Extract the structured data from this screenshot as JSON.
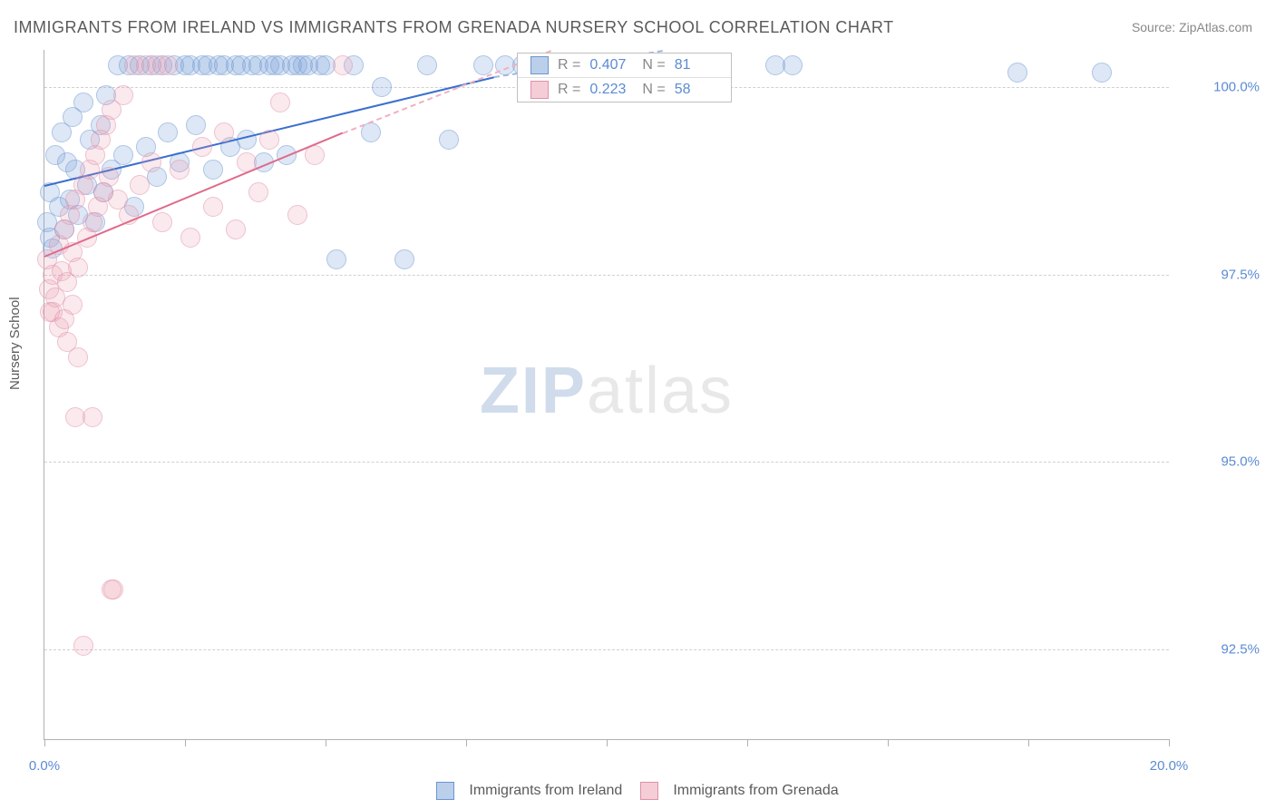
{
  "title": "IMMIGRANTS FROM IRELAND VS IMMIGRANTS FROM GRENADA NURSERY SCHOOL CORRELATION CHART",
  "source": "Source: ZipAtlas.com",
  "y_axis_label": "Nursery School",
  "watermark": {
    "part1": "ZIP",
    "part2": "atlas"
  },
  "chart": {
    "type": "scatter",
    "background_color": "#ffffff",
    "grid_color": "#d0d0d0",
    "axis_color": "#b0b0b0",
    "tick_label_color": "#5b8bd4",
    "xlim": [
      0.0,
      20.0
    ],
    "ylim": [
      91.3,
      100.5
    ],
    "ytick_values": [
      92.5,
      95.0,
      97.5,
      100.0
    ],
    "ytick_labels": [
      "92.5%",
      "95.0%",
      "97.5%",
      "100.0%"
    ],
    "xtick_values": [
      0.0,
      2.5,
      5.0,
      7.5,
      10.0,
      12.5,
      15.0,
      17.5,
      20.0
    ],
    "xlim_labels": {
      "min": "0.0%",
      "max": "20.0%"
    },
    "marker_radius": 10,
    "series": [
      {
        "name": "Immigrants from Ireland",
        "color_fill": "rgba(120,160,215,0.45)",
        "color_stroke": "#6a95d0",
        "line_color": "#3a6fcf",
        "css": "blue",
        "R": "0.407",
        "N": "81",
        "trend": {
          "x1": 0.0,
          "y1": 98.7,
          "x2": 8.0,
          "y2": 100.15
        },
        "trend_ext": {
          "x1": 8.0,
          "y1": 100.15,
          "x2": 11.0,
          "y2": 100.5
        },
        "points": [
          [
            0.05,
            98.2
          ],
          [
            0.1,
            98.0
          ],
          [
            0.15,
            97.85
          ],
          [
            0.1,
            98.6
          ],
          [
            0.2,
            99.1
          ],
          [
            0.25,
            98.4
          ],
          [
            0.3,
            99.4
          ],
          [
            0.35,
            98.1
          ],
          [
            0.4,
            99.0
          ],
          [
            0.45,
            98.5
          ],
          [
            0.5,
            99.6
          ],
          [
            0.55,
            98.9
          ],
          [
            0.6,
            98.3
          ],
          [
            0.7,
            99.8
          ],
          [
            0.75,
            98.7
          ],
          [
            0.8,
            99.3
          ],
          [
            0.9,
            98.2
          ],
          [
            1.0,
            99.5
          ],
          [
            1.05,
            98.6
          ],
          [
            1.1,
            99.9
          ],
          [
            1.2,
            98.9
          ],
          [
            1.3,
            100.3
          ],
          [
            1.4,
            99.1
          ],
          [
            1.5,
            100.3
          ],
          [
            1.6,
            98.4
          ],
          [
            1.7,
            100.3
          ],
          [
            1.8,
            99.2
          ],
          [
            1.9,
            100.3
          ],
          [
            2.0,
            98.8
          ],
          [
            2.1,
            100.3
          ],
          [
            2.2,
            99.4
          ],
          [
            2.3,
            100.3
          ],
          [
            2.4,
            99.0
          ],
          [
            2.5,
            100.3
          ],
          [
            2.6,
            100.3
          ],
          [
            2.7,
            99.5
          ],
          [
            2.8,
            100.3
          ],
          [
            2.9,
            100.3
          ],
          [
            3.0,
            98.9
          ],
          [
            3.1,
            100.3
          ],
          [
            3.2,
            100.3
          ],
          [
            3.3,
            99.2
          ],
          [
            3.4,
            100.3
          ],
          [
            3.5,
            100.3
          ],
          [
            3.6,
            99.3
          ],
          [
            3.7,
            100.3
          ],
          [
            3.8,
            100.3
          ],
          [
            3.9,
            99.0
          ],
          [
            4.0,
            100.3
          ],
          [
            4.1,
            100.3
          ],
          [
            4.2,
            100.3
          ],
          [
            4.3,
            99.1
          ],
          [
            4.4,
            100.3
          ],
          [
            4.5,
            100.3
          ],
          [
            4.6,
            100.3
          ],
          [
            4.7,
            100.3
          ],
          [
            4.9,
            100.3
          ],
          [
            5.0,
            100.3
          ],
          [
            5.2,
            97.7
          ],
          [
            5.5,
            100.3
          ],
          [
            5.8,
            99.4
          ],
          [
            6.0,
            100.0
          ],
          [
            6.4,
            97.7
          ],
          [
            6.8,
            100.3
          ],
          [
            7.2,
            99.3
          ],
          [
            7.8,
            100.3
          ],
          [
            8.2,
            100.3
          ],
          [
            8.5,
            100.3
          ],
          [
            9.0,
            100.3
          ],
          [
            9.3,
            100.0
          ],
          [
            9.8,
            100.3
          ],
          [
            10.2,
            100.3
          ],
          [
            10.5,
            100.1
          ],
          [
            11.0,
            100.3
          ],
          [
            11.3,
            100.3
          ],
          [
            11.6,
            100.3
          ],
          [
            11.9,
            100.3
          ],
          [
            13.0,
            100.3
          ],
          [
            13.3,
            100.3
          ],
          [
            17.3,
            100.2
          ],
          [
            18.8,
            100.2
          ]
        ]
      },
      {
        "name": "Immigrants from Grenada",
        "color_fill": "rgba(235,155,175,0.40)",
        "color_stroke": "#e090a8",
        "line_color": "#e06a8a",
        "css": "pink",
        "R": "0.223",
        "N": "58",
        "trend": {
          "x1": 0.0,
          "y1": 97.75,
          "x2": 5.3,
          "y2": 99.4
        },
        "trend_ext": {
          "x1": 5.3,
          "y1": 99.4,
          "x2": 9.0,
          "y2": 100.5
        },
        "points": [
          [
            0.05,
            97.7
          ],
          [
            0.08,
            97.3
          ],
          [
            0.1,
            97.0
          ],
          [
            0.15,
            97.5
          ],
          [
            0.2,
            97.2
          ],
          [
            0.25,
            97.9
          ],
          [
            0.3,
            97.55
          ],
          [
            0.35,
            98.1
          ],
          [
            0.4,
            97.4
          ],
          [
            0.45,
            98.3
          ],
          [
            0.5,
            97.8
          ],
          [
            0.55,
            98.5
          ],
          [
            0.6,
            97.6
          ],
          [
            0.7,
            98.7
          ],
          [
            0.75,
            98.0
          ],
          [
            0.8,
            98.9
          ],
          [
            0.85,
            98.2
          ],
          [
            0.9,
            99.1
          ],
          [
            0.95,
            98.4
          ],
          [
            1.0,
            99.3
          ],
          [
            1.05,
            98.6
          ],
          [
            1.1,
            99.5
          ],
          [
            1.15,
            98.8
          ],
          [
            1.2,
            99.7
          ],
          [
            1.3,
            98.5
          ],
          [
            1.4,
            99.9
          ],
          [
            1.5,
            98.3
          ],
          [
            1.6,
            100.3
          ],
          [
            1.7,
            98.7
          ],
          [
            1.8,
            100.3
          ],
          [
            1.9,
            99.0
          ],
          [
            2.0,
            100.3
          ],
          [
            2.1,
            98.2
          ],
          [
            2.2,
            100.3
          ],
          [
            2.4,
            98.9
          ],
          [
            2.6,
            98.0
          ],
          [
            2.8,
            99.2
          ],
          [
            3.0,
            98.4
          ],
          [
            3.2,
            99.4
          ],
          [
            3.4,
            98.1
          ],
          [
            3.6,
            99.0
          ],
          [
            3.8,
            98.6
          ],
          [
            4.0,
            99.3
          ],
          [
            4.2,
            99.8
          ],
          [
            4.5,
            98.3
          ],
          [
            4.8,
            99.1
          ],
          [
            5.3,
            100.3
          ],
          [
            0.55,
            95.6
          ],
          [
            0.85,
            95.6
          ],
          [
            1.2,
            93.3
          ],
          [
            1.22,
            93.3
          ],
          [
            0.7,
            92.55
          ],
          [
            0.15,
            97.0
          ],
          [
            0.25,
            96.8
          ],
          [
            0.4,
            96.6
          ],
          [
            0.6,
            96.4
          ],
          [
            0.5,
            97.1
          ],
          [
            0.35,
            96.9
          ]
        ]
      }
    ]
  },
  "legend_stats_labels": {
    "R": "R =",
    "N": "N ="
  },
  "bottom_legend": [
    {
      "css": "blue",
      "label": "Immigrants from Ireland"
    },
    {
      "css": "pink",
      "label": "Immigrants from Grenada"
    }
  ]
}
